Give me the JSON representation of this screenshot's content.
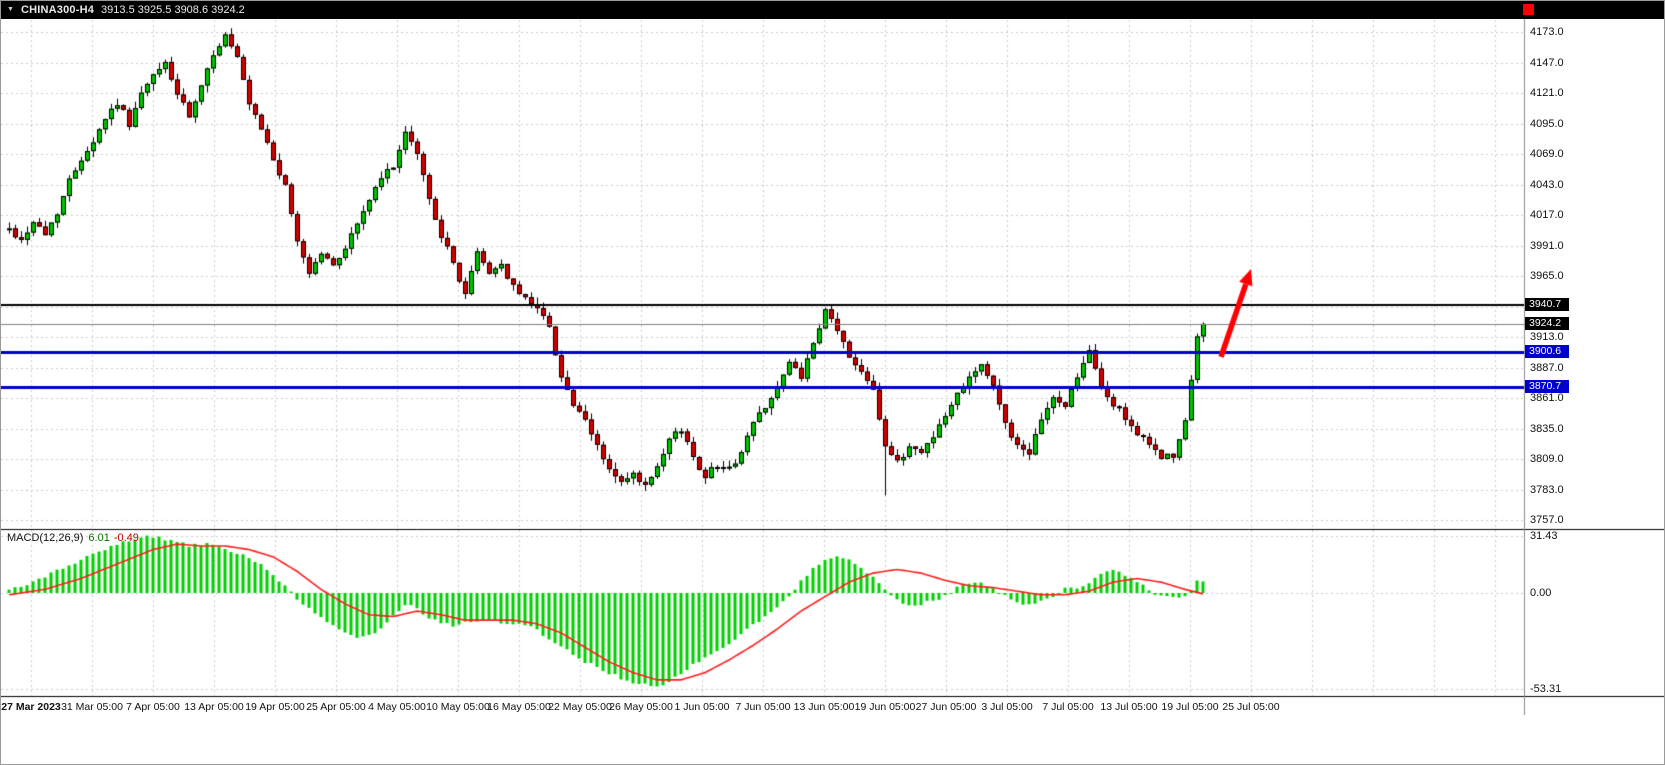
{
  "header": {
    "symbol_period": "CHINA300-H4",
    "quotes": "3913.5 3925.5 3908.6 3924.2"
  },
  "colors": {
    "background": "#FFFFFF",
    "titlebar_bg": "#000000",
    "titlebar_text": "#E8E8E8",
    "grid": "#CDCDCD",
    "bull": "#00C400",
    "bear": "#D60000",
    "candle_outline": "#000000",
    "level_black": "#000000",
    "level_blue": "#0000CD",
    "current_price_line": "#808080",
    "macd_hist": "#00D000",
    "macd_signal": "#FF1E1E",
    "arrow": "#FF0000",
    "red_square": "#FF0000",
    "axis_text": "#111111",
    "separator": "#000000"
  },
  "chart_data": {
    "type": "candlestick",
    "symbol": "CHINA300",
    "timeframe": "H4",
    "title": "CHINA300-H4 3913.5 3925.5 3908.6 3924.2",
    "ohlc": {
      "open": 3913.5,
      "high": 3925.5,
      "low": 3908.6,
      "close": 3924.2
    },
    "price_range": [
      3757.0,
      4173.0
    ],
    "grid_step": 26.0,
    "grid": "dashed",
    "axis_position": "right",
    "y_ticks": [
      "4173.0",
      "4147.0",
      "4121.0",
      "4095.0",
      "4069.0",
      "4043.0",
      "4017.0",
      "3991.0",
      "3965.0",
      "3913.0",
      "3887.0",
      "3861.0",
      "3835.0",
      "3809.0",
      "3783.0",
      "3757.0"
    ],
    "price_badges": [
      {
        "label": "3940.7",
        "value": 3940.7,
        "bg": "#000000"
      },
      {
        "label": "3924.2",
        "value": 3924.2,
        "bg": "#000000"
      },
      {
        "label": "3900.6",
        "value": 3900.6,
        "bg": "#0000CD"
      },
      {
        "label": "3870.7",
        "value": 3870.7,
        "bg": "#0000CD"
      }
    ],
    "price_levels": [
      {
        "value": 3940.7,
        "color": "#000000",
        "width": 2
      },
      {
        "value": 3924.2,
        "color": "#808080",
        "width": 1
      },
      {
        "value": 3900.6,
        "color": "#0000CD",
        "width": 3
      },
      {
        "value": 3870.7,
        "color": "#0000CD",
        "width": 3
      }
    ],
    "x_labels": [
      "27 Mar 2023",
      "31 Mar 05:00",
      "7 Apr 05:00",
      "13 Apr 05:00",
      "19 Apr 05:00",
      "25 Apr 05:00",
      "4 May 05:00",
      "10 May 05:00",
      "16 May 05:00",
      "22 May 05:00",
      "26 May 05:00",
      "1 Jun 05:00",
      "7 Jun 05:00",
      "13 Jun 05:00",
      "19 Jun 05:00",
      "27 Jun 05:00",
      "3 Jul 05:00",
      "7 Jul 05:00",
      "13 Jul 05:00",
      "19 Jul 05:00",
      "25 Jul 05:00"
    ],
    "candle_count": 200,
    "close_path": [
      [
        0,
        4005
      ],
      [
        2,
        3995
      ],
      [
        4,
        4012
      ],
      [
        6,
        4000
      ],
      [
        8,
        4020
      ],
      [
        10,
        4046
      ],
      [
        12,
        4066
      ],
      [
        14,
        4080
      ],
      [
        16,
        4100
      ],
      [
        18,
        4113
      ],
      [
        20,
        4095
      ],
      [
        22,
        4120
      ],
      [
        24,
        4135
      ],
      [
        26,
        4147
      ],
      [
        28,
        4120
      ],
      [
        30,
        4100
      ],
      [
        32,
        4125
      ],
      [
        34,
        4155
      ],
      [
        36,
        4170
      ],
      [
        38,
        4150
      ],
      [
        40,
        4110
      ],
      [
        42,
        4090
      ],
      [
        44,
        4065
      ],
      [
        46,
        4040
      ],
      [
        48,
        3995
      ],
      [
        50,
        3968
      ],
      [
        52,
        3985
      ],
      [
        54,
        3973
      ],
      [
        56,
        3990
      ],
      [
        58,
        4010
      ],
      [
        60,
        4030
      ],
      [
        62,
        4048
      ],
      [
        64,
        4060
      ],
      [
        66,
        4085
      ],
      [
        68,
        4070
      ],
      [
        70,
        4030
      ],
      [
        72,
        4000
      ],
      [
        74,
        3975
      ],
      [
        76,
        3950
      ],
      [
        78,
        3985
      ],
      [
        80,
        3968
      ],
      [
        82,
        3975
      ],
      [
        84,
        3955
      ],
      [
        86,
        3945
      ],
      [
        88,
        3940
      ],
      [
        90,
        3920
      ],
      [
        92,
        3880
      ],
      [
        94,
        3855
      ],
      [
        96,
        3840
      ],
      [
        98,
        3820
      ],
      [
        100,
        3800
      ],
      [
        102,
        3788
      ],
      [
        104,
        3795
      ],
      [
        106,
        3785
      ],
      [
        108,
        3800
      ],
      [
        110,
        3825
      ],
      [
        112,
        3835
      ],
      [
        114,
        3810
      ],
      [
        116,
        3795
      ],
      [
        118,
        3805
      ],
      [
        120,
        3800
      ],
      [
        122,
        3815
      ],
      [
        124,
        3840
      ],
      [
        126,
        3855
      ],
      [
        128,
        3870
      ],
      [
        130,
        3890
      ],
      [
        132,
        3880
      ],
      [
        134,
        3905
      ],
      [
        136,
        3935
      ],
      [
        138,
        3920
      ],
      [
        140,
        3895
      ],
      [
        142,
        3885
      ],
      [
        144,
        3870
      ],
      [
        146,
        3820
      ],
      [
        148,
        3805
      ],
      [
        150,
        3820
      ],
      [
        152,
        3815
      ],
      [
        154,
        3830
      ],
      [
        156,
        3845
      ],
      [
        158,
        3865
      ],
      [
        160,
        3880
      ],
      [
        162,
        3890
      ],
      [
        164,
        3870
      ],
      [
        166,
        3840
      ],
      [
        168,
        3820
      ],
      [
        170,
        3810
      ],
      [
        172,
        3845
      ],
      [
        174,
        3860
      ],
      [
        176,
        3855
      ],
      [
        178,
        3880
      ],
      [
        180,
        3900
      ],
      [
        182,
        3870
      ],
      [
        184,
        3855
      ],
      [
        186,
        3845
      ],
      [
        188,
        3830
      ],
      [
        190,
        3820
      ],
      [
        192,
        3812
      ],
      [
        194,
        3810
      ],
      [
        196,
        3840
      ],
      [
        198,
        3910
      ],
      [
        199,
        3924.2
      ]
    ],
    "spike_low": {
      "index": 146,
      "price": 3778
    },
    "annotation_arrow": {
      "color": "#FF0000",
      "from": {
        "index": 202,
        "price": 3896
      },
      "to": {
        "index": 207,
        "price": 3971
      }
    },
    "macd": {
      "label": "MACD(12,26,9)",
      "value_main": "6.01",
      "value_signal": "-0.49",
      "ticks": [
        "31.43",
        "0.00",
        "-53.31"
      ],
      "range": [
        -53.31,
        31.43
      ],
      "histogram_path": [
        [
          0,
          2
        ],
        [
          4,
          6
        ],
        [
          8,
          12
        ],
        [
          12,
          18
        ],
        [
          16,
          24
        ],
        [
          20,
          29
        ],
        [
          22,
          31
        ],
        [
          26,
          30
        ],
        [
          30,
          26
        ],
        [
          34,
          27
        ],
        [
          38,
          22
        ],
        [
          42,
          16
        ],
        [
          44,
          10
        ],
        [
          46,
          4
        ],
        [
          48,
          -4
        ],
        [
          52,
          -14
        ],
        [
          56,
          -22
        ],
        [
          58,
          -25
        ],
        [
          62,
          -20
        ],
        [
          64,
          -12
        ],
        [
          66,
          -6
        ],
        [
          68,
          -8
        ],
        [
          70,
          -14
        ],
        [
          74,
          -18
        ],
        [
          76,
          -16
        ],
        [
          80,
          -15
        ],
        [
          84,
          -17
        ],
        [
          88,
          -20
        ],
        [
          90,
          -26
        ],
        [
          92,
          -30
        ],
        [
          94,
          -34
        ],
        [
          96,
          -38
        ],
        [
          100,
          -44
        ],
        [
          104,
          -50
        ],
        [
          108,
          -52
        ],
        [
          110,
          -50
        ],
        [
          112,
          -44
        ],
        [
          116,
          -36
        ],
        [
          120,
          -28
        ],
        [
          124,
          -18
        ],
        [
          128,
          -8
        ],
        [
          130,
          -2
        ],
        [
          132,
          6
        ],
        [
          134,
          14
        ],
        [
          136,
          19
        ],
        [
          138,
          21
        ],
        [
          140,
          18
        ],
        [
          142,
          14
        ],
        [
          144,
          8
        ],
        [
          146,
          2
        ],
        [
          148,
          -4
        ],
        [
          150,
          -7
        ],
        [
          152,
          -6
        ],
        [
          154,
          -4
        ],
        [
          156,
          -2
        ],
        [
          158,
          3
        ],
        [
          160,
          6
        ],
        [
          162,
          5
        ],
        [
          164,
          2
        ],
        [
          166,
          -2
        ],
        [
          168,
          -5
        ],
        [
          170,
          -6
        ],
        [
          172,
          -4
        ],
        [
          174,
          -2
        ],
        [
          176,
          2
        ],
        [
          178,
          3
        ],
        [
          180,
          6
        ],
        [
          182,
          10
        ],
        [
          184,
          12
        ],
        [
          186,
          10
        ],
        [
          188,
          6
        ],
        [
          190,
          2
        ],
        [
          192,
          -2
        ],
        [
          194,
          -3
        ],
        [
          196,
          -1
        ],
        [
          198,
          6
        ],
        [
          199,
          6.01
        ]
      ],
      "signal_path": [
        [
          0,
          -1
        ],
        [
          6,
          2
        ],
        [
          12,
          8
        ],
        [
          18,
          16
        ],
        [
          24,
          24
        ],
        [
          28,
          27
        ],
        [
          32,
          26
        ],
        [
          36,
          26
        ],
        [
          40,
          24
        ],
        [
          44,
          20
        ],
        [
          48,
          12
        ],
        [
          52,
          2
        ],
        [
          56,
          -6
        ],
        [
          60,
          -12
        ],
        [
          64,
          -13
        ],
        [
          68,
          -10
        ],
        [
          72,
          -12
        ],
        [
          76,
          -15
        ],
        [
          80,
          -15
        ],
        [
          84,
          -15
        ],
        [
          88,
          -17
        ],
        [
          92,
          -22
        ],
        [
          96,
          -30
        ],
        [
          100,
          -38
        ],
        [
          104,
          -44
        ],
        [
          108,
          -48
        ],
        [
          112,
          -48
        ],
        [
          116,
          -44
        ],
        [
          120,
          -37
        ],
        [
          124,
          -29
        ],
        [
          128,
          -20
        ],
        [
          132,
          -10
        ],
        [
          136,
          -2
        ],
        [
          140,
          6
        ],
        [
          144,
          11
        ],
        [
          148,
          13
        ],
        [
          152,
          11
        ],
        [
          156,
          7
        ],
        [
          160,
          4
        ],
        [
          164,
          3
        ],
        [
          168,
          1
        ],
        [
          172,
          -1
        ],
        [
          176,
          -1
        ],
        [
          180,
          1
        ],
        [
          184,
          6
        ],
        [
          188,
          8
        ],
        [
          192,
          6
        ],
        [
          196,
          2
        ],
        [
          199,
          -0.49
        ]
      ]
    }
  }
}
